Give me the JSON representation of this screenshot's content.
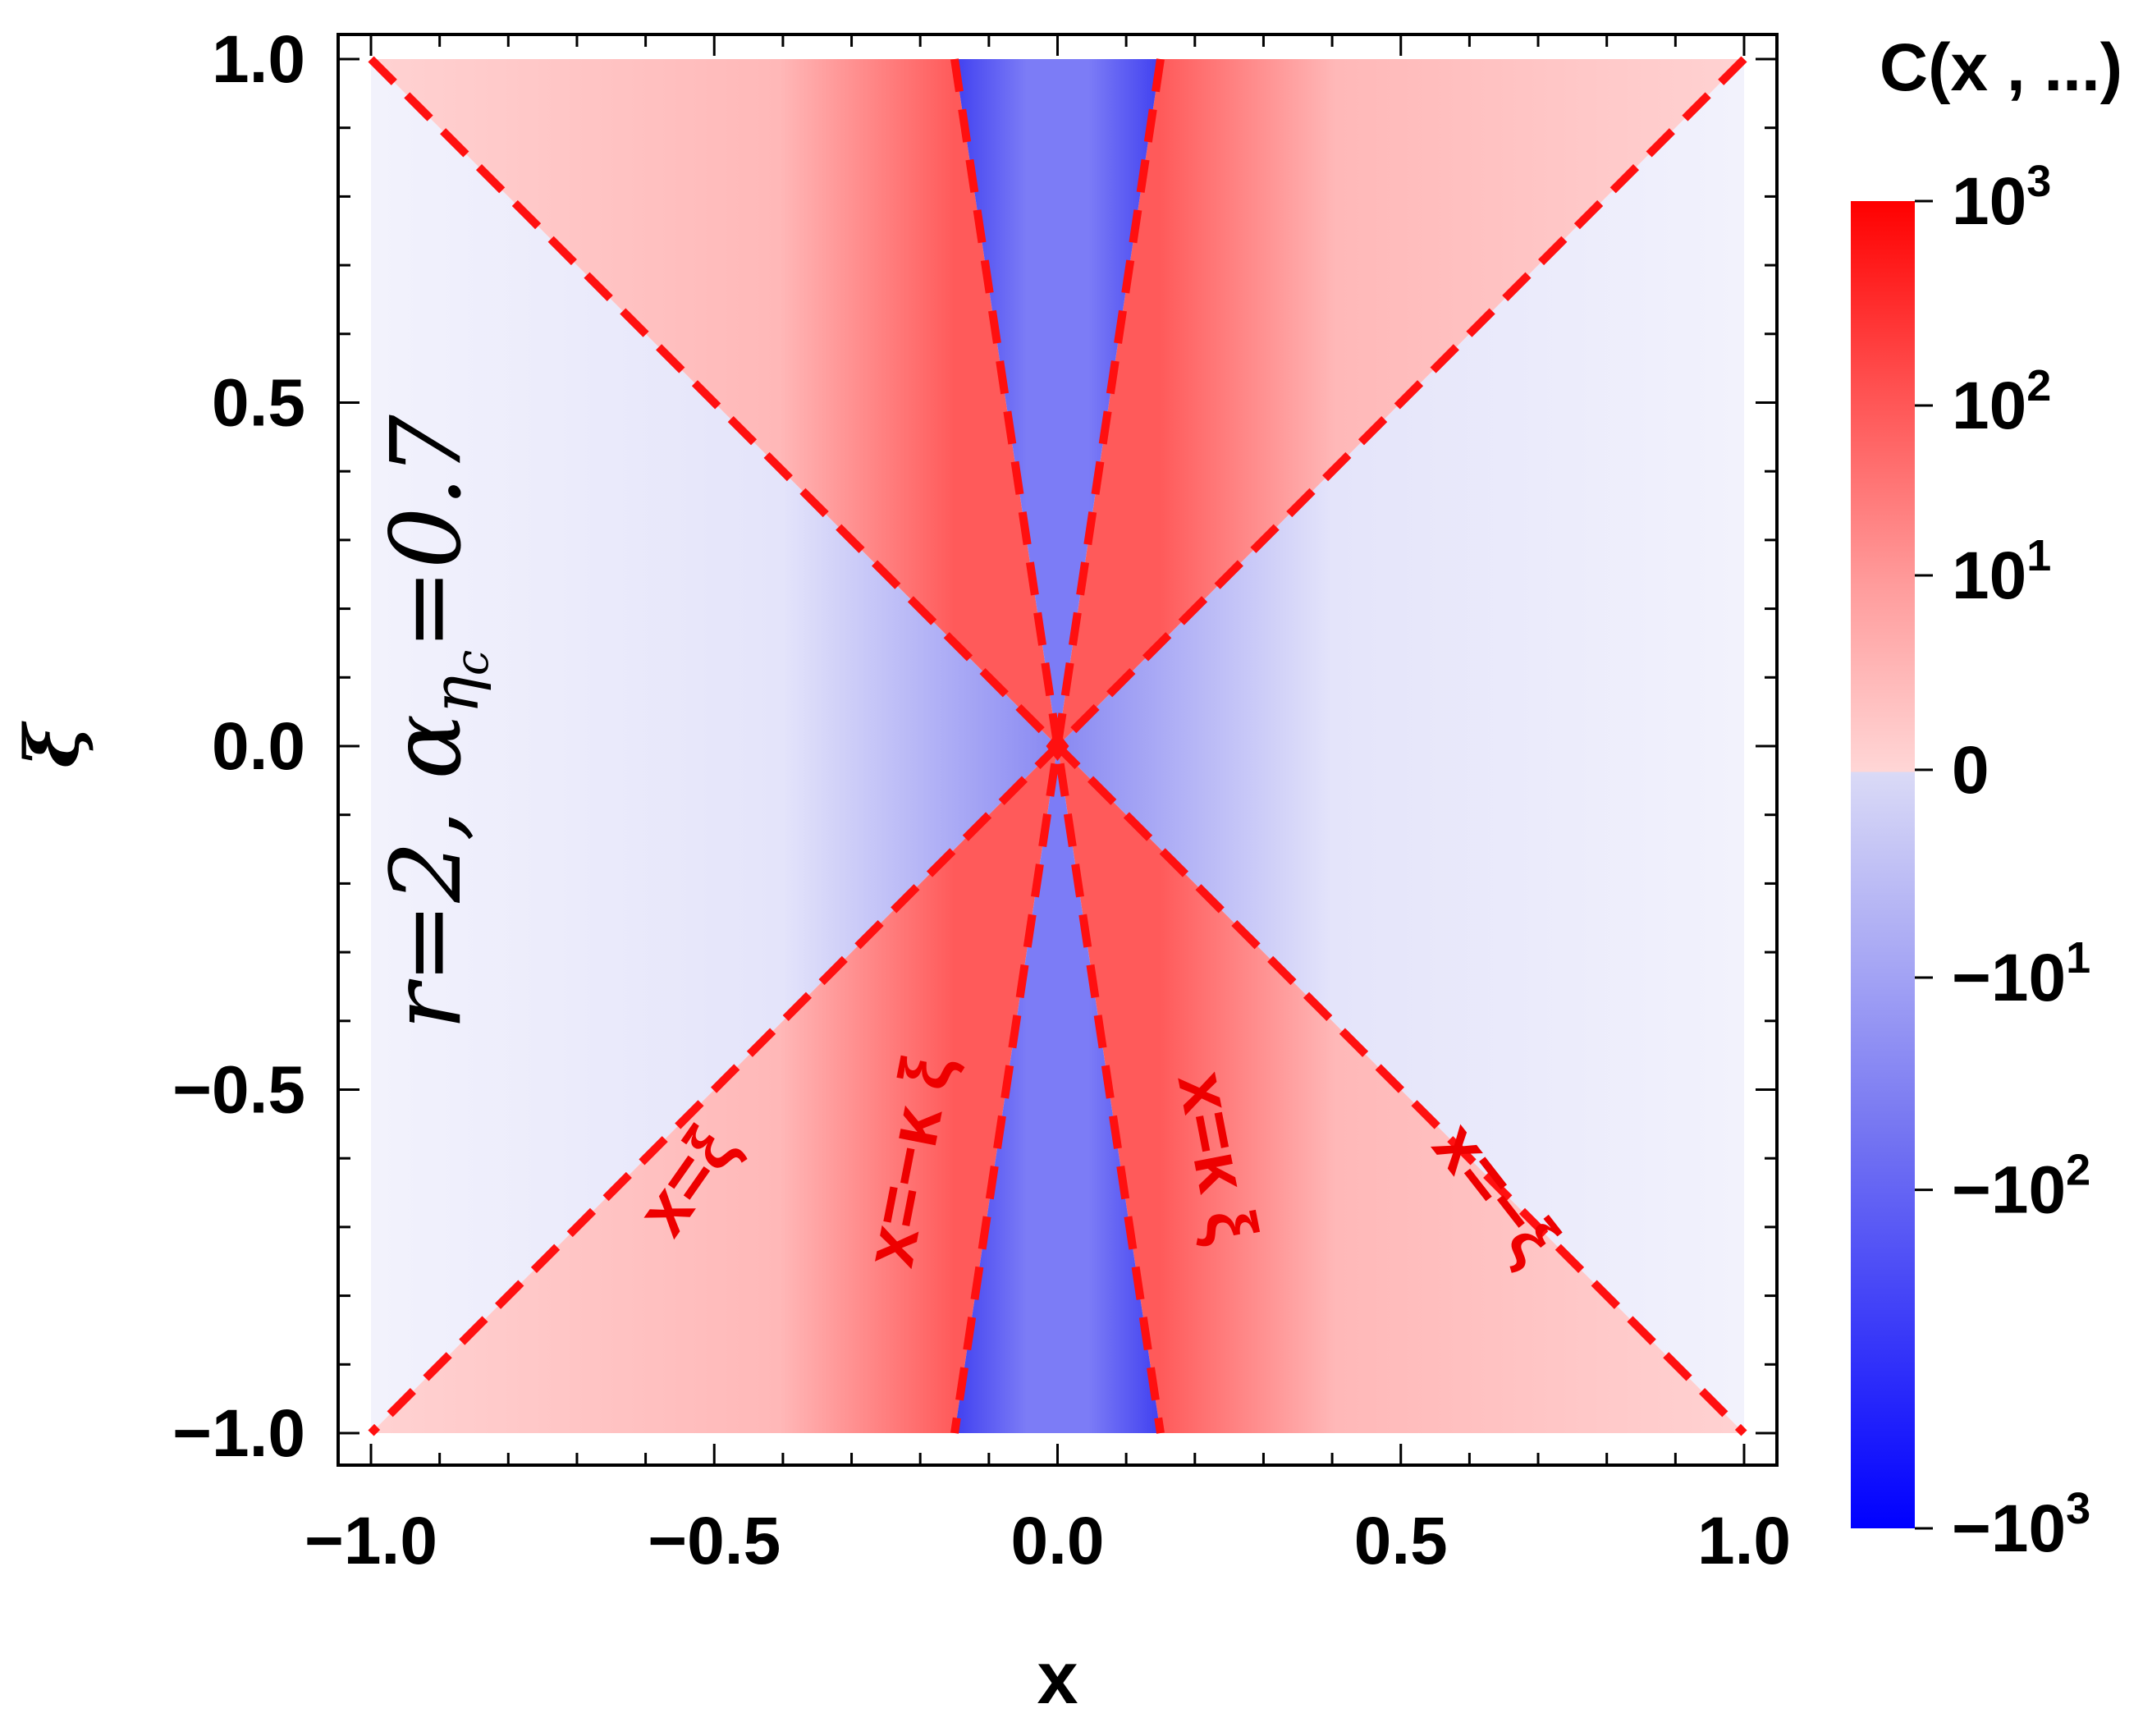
{
  "chart_data": {
    "type": "heatmap",
    "title": "",
    "xlabel": "x",
    "ylabel": "ξ",
    "xlim": [
      -1.0,
      1.0
    ],
    "ylim": [
      -1.0,
      1.0
    ],
    "x_ticks": [
      "−1.0",
      "−0.5",
      "0.0",
      "0.5",
      "1.0"
    ],
    "y_ticks": [
      "1.0",
      "0.5",
      "0.0",
      "−0.5",
      "−1.0"
    ],
    "x_tick_values": [
      -1.0,
      -0.5,
      0.0,
      0.5,
      1.0
    ],
    "y_tick_values": [
      1.0,
      0.5,
      0.0,
      -0.5,
      -1.0
    ],
    "grid": false,
    "parameters": {
      "r": 2,
      "alpha_eta_c": 0.7,
      "kappa": 0.15
    },
    "parameter_text": {
      "r_part": "r=2, ",
      "alpha": "α",
      "subscript_eta": "η",
      "subscript_c": "c",
      "value_part": "=0.7"
    },
    "colorbar": {
      "title": "C(x , ...)",
      "scale": "symmetric-log",
      "range": [
        -1000,
        1000
      ],
      "ticks": [
        {
          "value": 1000,
          "base": "10",
          "exp": "3"
        },
        {
          "value": 100,
          "base": "10",
          "exp": "2"
        },
        {
          "value": 10,
          "base": "10",
          "exp": "1"
        },
        {
          "value": 0,
          "base": "0",
          "exp": ""
        },
        {
          "value": -10,
          "base": "−10",
          "exp": "1"
        },
        {
          "value": -100,
          "base": "−10",
          "exp": "2"
        },
        {
          "value": -1000,
          "base": "−10",
          "exp": "3"
        }
      ],
      "positive_color": "#ff0000",
      "negative_color": "#0000ff",
      "zero_pos_color": "#ffd8d8",
      "zero_neg_color": "#dcdcf6"
    },
    "regions": [
      {
        "where": "|x| > |ξ|",
        "sign": "negative",
        "color": "#f0f0fb"
      },
      {
        "where": "κ|ξ| < |x| < |ξ|",
        "sign": "positive",
        "color": "#ffc4c4"
      },
      {
        "where": "|x| < κ|ξ|",
        "sign": "negative",
        "color": "#7a7af5"
      }
    ],
    "curves": [
      {
        "label": "x=ξ",
        "slope_x_per_xi": 1.0,
        "color": "#ff1010",
        "style": "dashed"
      },
      {
        "label": "x=−κ ξ",
        "slope_x_per_xi": -0.15,
        "color": "#ff1010",
        "style": "dashed"
      },
      {
        "label": "x=κ ξ",
        "slope_x_per_xi": 0.15,
        "color": "#ff1010",
        "style": "dashed"
      },
      {
        "label": "x=−ξ",
        "slope_x_per_xi": -1.0,
        "color": "#ff1010",
        "style": "dashed"
      }
    ]
  }
}
